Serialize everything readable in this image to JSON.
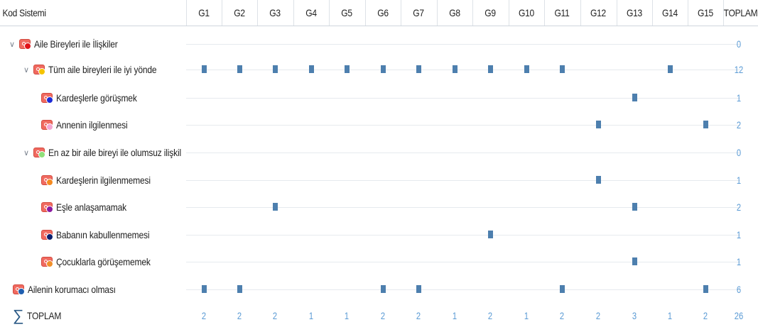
{
  "header": {
    "code_system_label": "Kod Sistemi",
    "columns": [
      "G1",
      "G2",
      "G3",
      "G4",
      "G5",
      "G6",
      "G7",
      "G8",
      "G9",
      "G10",
      "G11",
      "G12",
      "G13",
      "G14",
      "G15"
    ],
    "total_label": "TOPLAM"
  },
  "rows": [
    {
      "label": "Aile Bireyleri ile İlişkiler",
      "expander": "chevron-down",
      "dot_color": "#e0141a",
      "marks": [],
      "total": "0"
    },
    {
      "label": "Tüm aile bireyleri ile iyi yönde",
      "expander": "chevron-down",
      "dot_color": "#f5c400",
      "marks": [
        "G1",
        "G2",
        "G3",
        "G4",
        "G5",
        "G6",
        "G7",
        "G8",
        "G9",
        "G10",
        "G11",
        "G14"
      ],
      "total": "12"
    },
    {
      "label": "Kardeşlerle görüşmek",
      "dot_color": "#1d2bd6",
      "marks": [
        "G13"
      ],
      "total": "1"
    },
    {
      "label": "Annenin ilgilenmesi",
      "dot_color": "#f4a7d3",
      "marks": [
        "G12",
        "G15"
      ],
      "total": "2"
    },
    {
      "label": "En az bir aile bireyi ile olumsuz ilişkil",
      "expander": "chevron-down",
      "dot_color": "#8fe07a",
      "marks": [],
      "total": "0"
    },
    {
      "label": "Kardeşlerin ilgilenmemesi",
      "dot_color": "#f58a1f",
      "marks": [
        "G12"
      ],
      "total": "1"
    },
    {
      "label": "Eşle anlaşamamak",
      "dot_color": "#8a1aa0",
      "marks": [
        "G3",
        "G13"
      ],
      "total": "2"
    },
    {
      "label": "Babanın kabullenmemesi",
      "dot_color": "#0a1f6e",
      "marks": [
        "G9"
      ],
      "total": "1"
    },
    {
      "label": "Çocuklarla görüşememek",
      "dot_color": "#f0902a",
      "marks": [
        "G13"
      ],
      "total": "1"
    },
    {
      "label": "Ailenin korumacı olması",
      "dot_color": "#1f5fb0",
      "marks": [
        "G1",
        "G2",
        "G6",
        "G7",
        "G11",
        "G15"
      ],
      "total": "6"
    }
  ],
  "totals": {
    "label": "TOPLAM",
    "values": [
      "2",
      "2",
      "2",
      "1",
      "1",
      "2",
      "2",
      "1",
      "2",
      "1",
      "2",
      "2",
      "3",
      "1",
      "2"
    ],
    "grand_total": "26"
  },
  "colors": {
    "mark": "#4d7fae",
    "number": "#5b9bd5",
    "selected_row": "#e7edf3"
  }
}
